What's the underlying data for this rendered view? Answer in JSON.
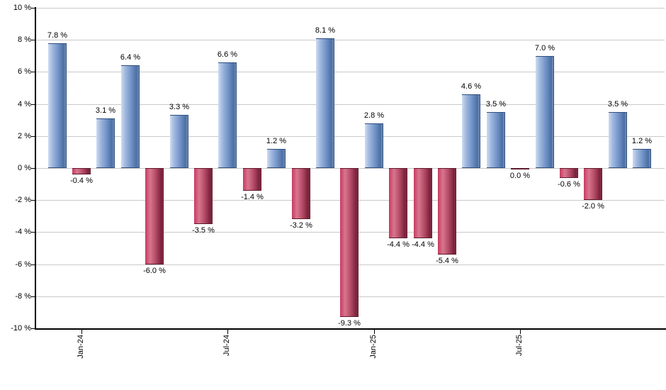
{
  "chart_data": {
    "type": "bar",
    "title": "",
    "xlabel": "",
    "ylabel": "",
    "ylim": [
      -10,
      10
    ],
    "grid": true,
    "legend": "none",
    "value_suffix": " %",
    "y_ticks": [
      {
        "value": 10,
        "label": "10 %"
      },
      {
        "value": 8,
        "label": "8 %"
      },
      {
        "value": 6,
        "label": "6 %"
      },
      {
        "value": 4,
        "label": "4 %"
      },
      {
        "value": 2,
        "label": "2 %"
      },
      {
        "value": 0,
        "label": "0 %"
      },
      {
        "value": -2,
        "label": "-2 %"
      },
      {
        "value": -4,
        "label": "-4 %"
      },
      {
        "value": -6,
        "label": "-6 %"
      },
      {
        "value": -8,
        "label": "-8 %"
      },
      {
        "value": -10,
        "label": "-10 %"
      }
    ],
    "x_ticks": [
      {
        "bar_index": 1,
        "label": "Jan-24"
      },
      {
        "bar_index": 7,
        "label": "Jul-24"
      },
      {
        "bar_index": 13,
        "label": "Jan-25"
      },
      {
        "bar_index": 19,
        "label": "Jul-25"
      }
    ],
    "bars": [
      {
        "value": 7.8,
        "label": "7.8 %",
        "series": "positive"
      },
      {
        "value": -0.4,
        "label": "-0.4 %",
        "series": "negative"
      },
      {
        "value": 3.1,
        "label": "3.1 %",
        "series": "positive"
      },
      {
        "value": 6.4,
        "label": "6.4 %",
        "series": "positive"
      },
      {
        "value": -6.0,
        "label": "-6.0 %",
        "series": "negative"
      },
      {
        "value": 3.3,
        "label": "3.3 %",
        "series": "positive"
      },
      {
        "value": -3.5,
        "label": "-3.5 %",
        "series": "negative"
      },
      {
        "value": 6.6,
        "label": "6.6 %",
        "series": "positive"
      },
      {
        "value": -1.4,
        "label": "-1.4 %",
        "series": "negative"
      },
      {
        "value": 1.2,
        "label": "1.2 %",
        "series": "positive"
      },
      {
        "value": -3.2,
        "label": "-3.2 %",
        "series": "negative"
      },
      {
        "value": 8.1,
        "label": "8.1 %",
        "series": "positive"
      },
      {
        "value": -9.3,
        "label": "-9.3 %",
        "series": "negative"
      },
      {
        "value": 2.8,
        "label": "2.8 %",
        "series": "positive"
      },
      {
        "value": -4.4,
        "label": "-4.4 %",
        "series": "negative"
      },
      {
        "value": -4.4,
        "label": "-4.4 %",
        "series": "negative"
      },
      {
        "value": -5.4,
        "label": "-5.4 %",
        "series": "negative"
      },
      {
        "value": 4.6,
        "label": "4.6 %",
        "series": "positive"
      },
      {
        "value": 3.5,
        "label": "3.5 %",
        "series": "positive"
      },
      {
        "value": 0.0,
        "label": "0.0 %",
        "series": "negative"
      },
      {
        "value": 7.0,
        "label": "7.0 %",
        "series": "positive"
      },
      {
        "value": -0.6,
        "label": "-0.6 %",
        "series": "negative"
      },
      {
        "value": -2.0,
        "label": "-2.0 %",
        "series": "negative"
      },
      {
        "value": 3.5,
        "label": "3.5 %",
        "series": "positive"
      },
      {
        "value": 1.2,
        "label": "1.2 %",
        "series": "positive"
      }
    ],
    "colors": {
      "positive_gradient": [
        "#cfdcf1",
        "#a3badf",
        "#7495c9",
        "#4a6fa3",
        "#7b91b4"
      ],
      "negative_gradient": [
        "#c83a60",
        "#d8768f",
        "#b44a65",
        "#77203a",
        "#8e3049"
      ],
      "positive_border": "#30507f",
      "negative_border": "#5f1b2f",
      "gridline": "#c9c9c9",
      "axis": "#000000",
      "label_text": "#000000",
      "background": "#ffffff"
    }
  }
}
